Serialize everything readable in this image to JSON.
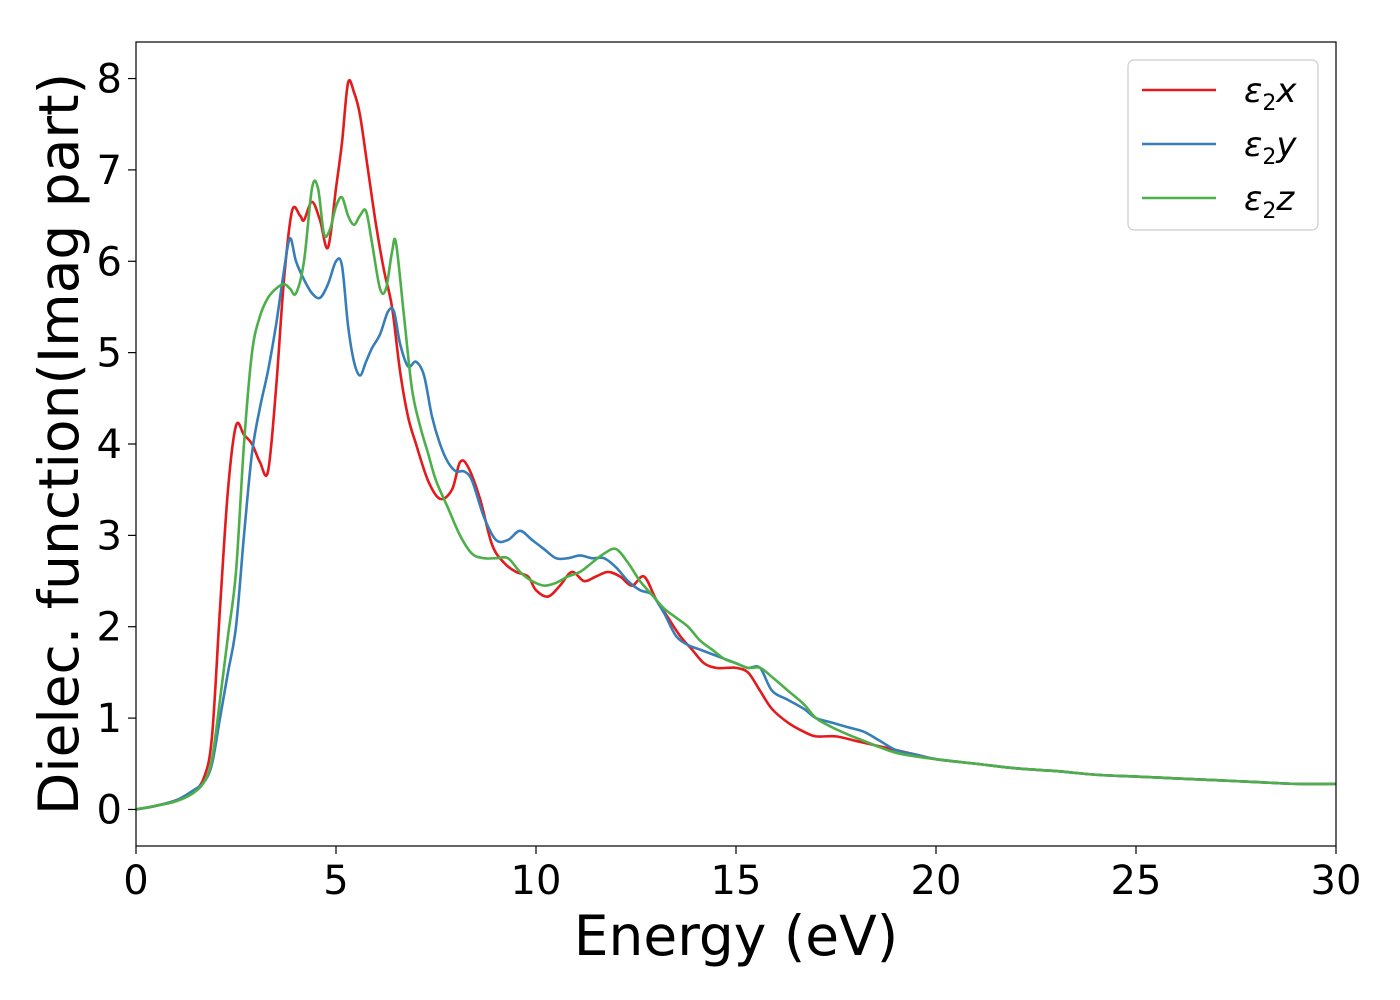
{
  "chart_data": {
    "type": "line",
    "title": "",
    "xlabel": "Energy (eV)",
    "ylabel": "Dielec. function(Imag part)",
    "xlim": [
      0,
      30
    ],
    "ylim": [
      -0.4,
      8.4
    ],
    "xticks": [
      0,
      5,
      10,
      15,
      20,
      25,
      30
    ],
    "yticks": [
      0,
      1,
      2,
      3,
      4,
      5,
      6,
      7,
      8
    ],
    "xtick_labels": [
      "0",
      "5",
      "10",
      "15",
      "20",
      "25",
      "30"
    ],
    "ytick_labels": [
      "0",
      "1",
      "2",
      "3",
      "4",
      "5",
      "6",
      "7",
      "8"
    ],
    "grid": false,
    "legend_position": "top-right",
    "series": [
      {
        "name": "ε2x",
        "legend_symbol": "ε",
        "legend_sub": "2",
        "legend_var": "x",
        "color": "#e41a1c",
        "x": [
          0,
          0.5,
          1.0,
          1.4,
          1.7,
          1.9,
          2.1,
          2.3,
          2.5,
          2.7,
          2.9,
          3.1,
          3.3,
          3.5,
          3.7,
          3.9,
          4.1,
          4.2,
          4.4,
          4.6,
          4.8,
          5.0,
          5.15,
          5.3,
          5.45,
          5.6,
          5.8,
          6.0,
          6.2,
          6.4,
          6.6,
          6.8,
          7.0,
          7.3,
          7.6,
          7.9,
          8.1,
          8.3,
          8.6,
          8.9,
          9.2,
          9.5,
          9.8,
          10.0,
          10.3,
          10.6,
          10.9,
          11.2,
          11.5,
          11.8,
          12.1,
          12.4,
          12.7,
          13.0,
          13.3,
          13.6,
          13.9,
          14.2,
          14.5,
          14.8,
          15.0,
          15.3,
          15.6,
          15.9,
          16.3,
          16.7,
          17.0,
          17.5,
          18.0,
          18.5,
          19.0,
          19.5,
          20.0,
          21.0,
          22.0,
          23.0,
          24.0,
          25.0,
          26.0,
          27.0,
          28.0,
          29.0,
          30.0
        ],
        "values": [
          0.0,
          0.04,
          0.1,
          0.18,
          0.35,
          0.8,
          2.2,
          3.5,
          4.2,
          4.1,
          4.0,
          3.8,
          3.7,
          4.6,
          5.8,
          6.55,
          6.5,
          6.45,
          6.65,
          6.45,
          6.15,
          6.8,
          7.3,
          7.95,
          7.85,
          7.6,
          7.0,
          6.4,
          5.9,
          5.5,
          4.8,
          4.3,
          4.0,
          3.6,
          3.4,
          3.5,
          3.8,
          3.75,
          3.4,
          2.9,
          2.7,
          2.6,
          2.55,
          2.4,
          2.33,
          2.45,
          2.6,
          2.5,
          2.55,
          2.6,
          2.55,
          2.45,
          2.55,
          2.3,
          2.1,
          1.9,
          1.75,
          1.6,
          1.55,
          1.55,
          1.55,
          1.5,
          1.3,
          1.1,
          0.95,
          0.85,
          0.8,
          0.8,
          0.75,
          0.7,
          0.65,
          0.6,
          0.55,
          0.5,
          0.45,
          0.42,
          0.38,
          0.36,
          0.34,
          0.32,
          0.3,
          0.28,
          0.28
        ]
      },
      {
        "name": "ε2y",
        "legend_symbol": "ε",
        "legend_sub": "2",
        "legend_var": "y",
        "color": "#377eb8",
        "x": [
          0,
          0.5,
          1.0,
          1.4,
          1.7,
          1.9,
          2.1,
          2.3,
          2.5,
          2.7,
          2.9,
          3.1,
          3.3,
          3.5,
          3.7,
          3.85,
          4.0,
          4.2,
          4.4,
          4.6,
          4.8,
          5.0,
          5.15,
          5.3,
          5.45,
          5.6,
          5.75,
          5.9,
          6.1,
          6.3,
          6.45,
          6.6,
          6.8,
          7.0,
          7.2,
          7.4,
          7.6,
          7.8,
          8.0,
          8.2,
          8.4,
          8.7,
          9.0,
          9.3,
          9.6,
          9.9,
          10.2,
          10.5,
          10.8,
          11.1,
          11.4,
          11.7,
          12.0,
          12.3,
          12.6,
          12.9,
          13.2,
          13.5,
          13.8,
          14.1,
          14.4,
          14.7,
          15.0,
          15.3,
          15.6,
          15.9,
          16.3,
          16.7,
          17.0,
          17.4,
          17.8,
          18.2,
          18.6,
          19.0,
          19.5,
          20.0,
          21.0,
          22.0,
          23.0,
          24.0,
          25.0,
          26.0,
          27.0,
          28.0,
          29.0,
          30.0
        ],
        "values": [
          0.0,
          0.04,
          0.1,
          0.2,
          0.3,
          0.5,
          1.0,
          1.5,
          2.0,
          3.0,
          3.9,
          4.4,
          4.8,
          5.3,
          5.9,
          6.25,
          6.0,
          5.8,
          5.65,
          5.6,
          5.75,
          6.0,
          5.95,
          5.3,
          4.9,
          4.75,
          4.9,
          5.05,
          5.2,
          5.45,
          5.45,
          5.1,
          4.85,
          4.9,
          4.75,
          4.3,
          4.0,
          3.8,
          3.7,
          3.7,
          3.6,
          3.2,
          2.95,
          2.95,
          3.05,
          2.95,
          2.85,
          2.75,
          2.75,
          2.78,
          2.75,
          2.75,
          2.65,
          2.5,
          2.4,
          2.35,
          2.15,
          1.9,
          1.8,
          1.75,
          1.7,
          1.65,
          1.6,
          1.55,
          1.55,
          1.3,
          1.2,
          1.1,
          1.0,
          0.95,
          0.9,
          0.85,
          0.75,
          0.65,
          0.6,
          0.55,
          0.5,
          0.45,
          0.42,
          0.38,
          0.36,
          0.34,
          0.32,
          0.3,
          0.28,
          0.28
        ]
      },
      {
        "name": "ε2z",
        "legend_symbol": "ε",
        "legend_sub": "2",
        "legend_var": "z",
        "color": "#4daf4a",
        "x": [
          0,
          0.5,
          1.0,
          1.4,
          1.7,
          1.9,
          2.1,
          2.3,
          2.5,
          2.7,
          2.9,
          3.1,
          3.3,
          3.5,
          3.7,
          3.85,
          4.0,
          4.2,
          4.4,
          4.55,
          4.7,
          4.85,
          5.0,
          5.15,
          5.3,
          5.45,
          5.6,
          5.75,
          5.9,
          6.1,
          6.25,
          6.4,
          6.5,
          6.7,
          6.9,
          7.1,
          7.3,
          7.5,
          7.8,
          8.1,
          8.4,
          8.7,
          9.0,
          9.3,
          9.6,
          9.9,
          10.2,
          10.5,
          10.8,
          11.1,
          11.4,
          11.7,
          12.0,
          12.3,
          12.6,
          12.9,
          13.2,
          13.5,
          13.8,
          14.1,
          14.4,
          14.7,
          15.0,
          15.3,
          15.6,
          15.9,
          16.3,
          16.7,
          17.0,
          17.4,
          17.8,
          18.2,
          18.6,
          19.0,
          19.5,
          20.0,
          21.0,
          22.0,
          23.0,
          24.0,
          25.0,
          26.0,
          27.0,
          28.0,
          29.0,
          30.0
        ],
        "values": [
          0.0,
          0.04,
          0.09,
          0.17,
          0.3,
          0.55,
          1.2,
          1.9,
          2.6,
          4.0,
          5.0,
          5.4,
          5.6,
          5.7,
          5.75,
          5.7,
          5.65,
          6.0,
          6.8,
          6.8,
          6.3,
          6.35,
          6.6,
          6.7,
          6.5,
          6.4,
          6.5,
          6.55,
          6.2,
          5.7,
          5.7,
          6.1,
          6.2,
          5.4,
          4.6,
          4.2,
          3.9,
          3.6,
          3.3,
          3.0,
          2.8,
          2.75,
          2.75,
          2.75,
          2.6,
          2.5,
          2.45,
          2.48,
          2.55,
          2.6,
          2.7,
          2.8,
          2.85,
          2.7,
          2.5,
          2.35,
          2.2,
          2.1,
          2.0,
          1.85,
          1.75,
          1.65,
          1.6,
          1.55,
          1.55,
          1.45,
          1.3,
          1.15,
          1.0,
          0.9,
          0.82,
          0.75,
          0.68,
          0.62,
          0.58,
          0.55,
          0.5,
          0.45,
          0.42,
          0.38,
          0.36,
          0.34,
          0.32,
          0.3,
          0.28,
          0.28
        ]
      }
    ]
  }
}
